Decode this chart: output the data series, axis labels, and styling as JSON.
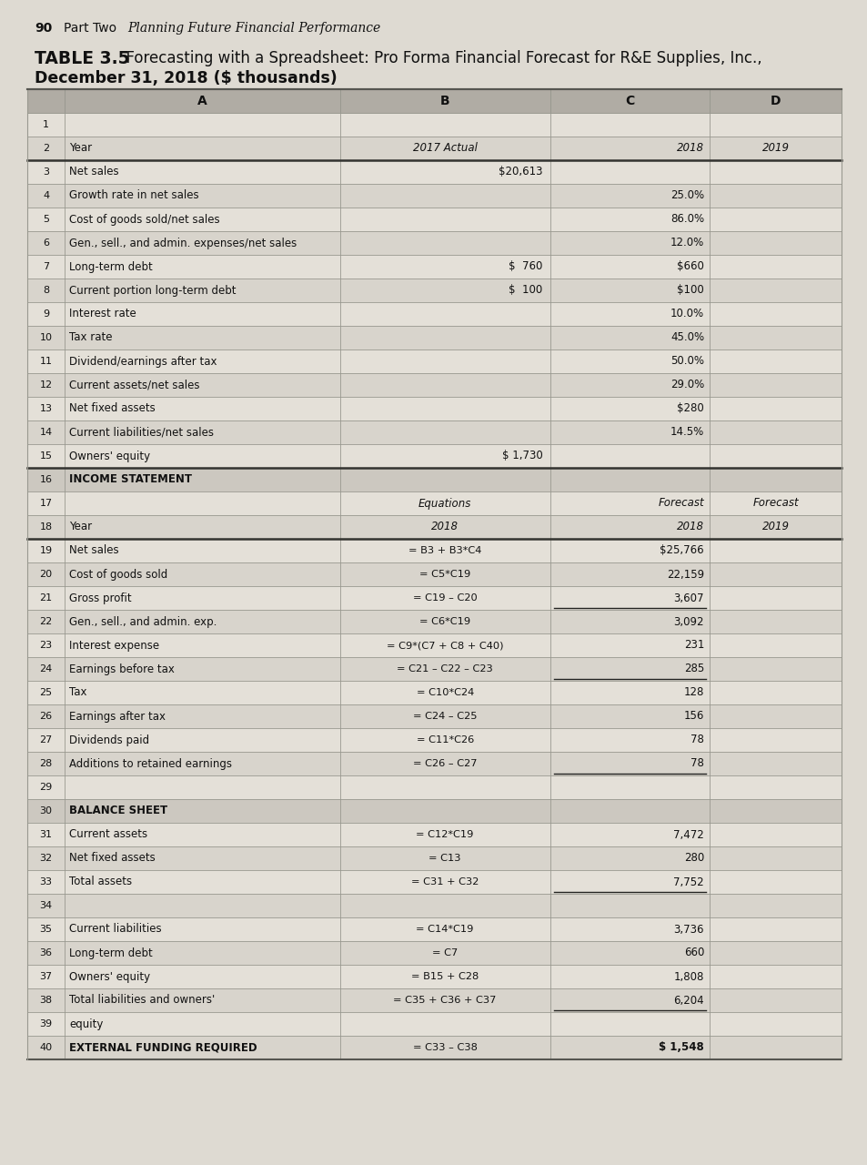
{
  "page_num": "90",
  "page_header_part": "Part Two",
  "page_header_italic": "Planning Future Financial Performance",
  "table_title_bold": "TABLE 3.5",
  "table_title_rest": "  Forecasting with a Spreadsheet: Pro Forma Financial Forecast for R&E Supplies, Inc.,",
  "table_subtitle": "December 31, 2018 ($ thousands)",
  "bg_color": "#dedad2",
  "table_bg": "#e8e4dc",
  "header_col_bg": "#b8b4ac",
  "rows": [
    {
      "num": "1",
      "A": "",
      "B": "",
      "C": "",
      "D": "",
      "bold_A": false,
      "section": false
    },
    {
      "num": "2",
      "A": "Year",
      "B": "2017 Actual",
      "C": "2018",
      "D": "2019",
      "bold_A": false,
      "italic_BCD": true,
      "section": false,
      "thick_bottom": true
    },
    {
      "num": "3",
      "A": "Net sales",
      "B": "$20,613",
      "C": "",
      "D": "",
      "bold_A": false,
      "section": false
    },
    {
      "num": "4",
      "A": "Growth rate in net sales",
      "B": "",
      "C": "25.0%",
      "D": "",
      "bold_A": false,
      "section": false
    },
    {
      "num": "5",
      "A": "Cost of goods sold/net sales",
      "B": "",
      "C": "86.0%",
      "D": "",
      "bold_A": false,
      "section": false
    },
    {
      "num": "6",
      "A": "Gen., sell., and admin. expenses/net sales",
      "B": "",
      "C": "12.0%",
      "D": "",
      "bold_A": false,
      "section": false
    },
    {
      "num": "7",
      "A": "Long-term debt",
      "B": "$  760",
      "C": "$660",
      "D": "",
      "bold_A": false,
      "section": false
    },
    {
      "num": "8",
      "A": "Current portion long-term debt",
      "B": "$  100",
      "C": "$100",
      "D": "",
      "bold_A": false,
      "section": false
    },
    {
      "num": "9",
      "A": "Interest rate",
      "B": "",
      "C": "10.0%",
      "D": "",
      "bold_A": false,
      "section": false
    },
    {
      "num": "10",
      "A": "Tax rate",
      "B": "",
      "C": "45.0%",
      "D": "",
      "bold_A": false,
      "section": false
    },
    {
      "num": "11",
      "A": "Dividend/earnings after tax",
      "B": "",
      "C": "50.0%",
      "D": "",
      "bold_A": false,
      "section": false
    },
    {
      "num": "12",
      "A": "Current assets/net sales",
      "B": "",
      "C": "29.0%",
      "D": "",
      "bold_A": false,
      "section": false
    },
    {
      "num": "13",
      "A": "Net fixed assets",
      "B": "",
      "C": "$280",
      "D": "",
      "bold_A": false,
      "section": false
    },
    {
      "num": "14",
      "A": "Current liabilities/net sales",
      "B": "",
      "C": "14.5%",
      "D": "",
      "bold_A": false,
      "section": false
    },
    {
      "num": "15",
      "A": "Owners' equity",
      "B": "$ 1,730",
      "C": "",
      "D": "",
      "bold_A": false,
      "section": false,
      "thick_bottom": true
    },
    {
      "num": "16",
      "A": "INCOME STATEMENT",
      "B": "",
      "C": "",
      "D": "",
      "bold_A": true,
      "section": true
    },
    {
      "num": "17",
      "A": "",
      "B": "Equations",
      "C": "Forecast",
      "D": "Forecast",
      "bold_A": false,
      "italic_BCD": true,
      "section": false,
      "top_label": true
    },
    {
      "num": "18",
      "A": "Year",
      "B": "2018",
      "C": "2018",
      "D": "2019",
      "bold_A": false,
      "italic_BCD": true,
      "section": false,
      "thick_bottom": true
    },
    {
      "num": "19",
      "A": "Net sales",
      "B": "= B3 + B3*C4",
      "C": "$25,766",
      "D": "",
      "bold_A": false,
      "section": false
    },
    {
      "num": "20",
      "A": "Cost of goods sold",
      "B": "= C5*C19",
      "C": "22,159",
      "D": "",
      "bold_A": false,
      "section": false
    },
    {
      "num": "21",
      "A": "Gross profit",
      "B": "= C19 – C20",
      "C": "3,607",
      "D": "",
      "bold_A": false,
      "section": false,
      "underline_C": true
    },
    {
      "num": "22",
      "A": "Gen., sell., and admin. exp.",
      "B": "= C6*C19",
      "C": "3,092",
      "D": "",
      "bold_A": false,
      "section": false
    },
    {
      "num": "23",
      "A": "Interest expense",
      "B": "= C9*(C7 + C8 + C40)",
      "C": "231",
      "D": "",
      "bold_A": false,
      "section": false
    },
    {
      "num": "24",
      "A": "Earnings before tax",
      "B": "= C21 – C22 – C23",
      "C": "285",
      "D": "",
      "bold_A": false,
      "section": false,
      "underline_C": true
    },
    {
      "num": "25",
      "A": "Tax",
      "B": "= C10*C24",
      "C": "128",
      "D": "",
      "bold_A": false,
      "section": false
    },
    {
      "num": "26",
      "A": "Earnings after tax",
      "B": "= C24 – C25",
      "C": "156",
      "D": "",
      "bold_A": false,
      "section": false
    },
    {
      "num": "27",
      "A": "Dividends paid",
      "B": "= C11*C26",
      "C": "78",
      "D": "",
      "bold_A": false,
      "section": false
    },
    {
      "num": "28",
      "A": "Additions to retained earnings",
      "B": "= C26 – C27",
      "C": "78",
      "D": "",
      "bold_A": false,
      "section": false,
      "underline_C": true
    },
    {
      "num": "29",
      "A": "",
      "B": "",
      "C": "",
      "D": "",
      "bold_A": false,
      "section": false
    },
    {
      "num": "30",
      "A": "BALANCE SHEET",
      "B": "",
      "C": "",
      "D": "",
      "bold_A": true,
      "section": true
    },
    {
      "num": "31",
      "A": "Current assets",
      "B": "= C12*C19",
      "C": "7,472",
      "D": "",
      "bold_A": false,
      "section": false
    },
    {
      "num": "32",
      "A": "Net fixed assets",
      "B": "= C13",
      "C": "280",
      "D": "",
      "bold_A": false,
      "section": false
    },
    {
      "num": "33",
      "A": "Total assets",
      "B": "= C31 + C32",
      "C": "7,752",
      "D": "",
      "bold_A": false,
      "section": false,
      "underline_C": true
    },
    {
      "num": "34",
      "A": "",
      "B": "",
      "C": "",
      "D": "",
      "bold_A": false,
      "section": false
    },
    {
      "num": "35",
      "A": "Current liabilities",
      "B": "= C14*C19",
      "C": "3,736",
      "D": "",
      "bold_A": false,
      "section": false
    },
    {
      "num": "36",
      "A": "Long-term debt",
      "B": "= C7",
      "C": "660",
      "D": "",
      "bold_A": false,
      "section": false
    },
    {
      "num": "37",
      "A": "Owners' equity",
      "B": "= B15 + C28",
      "C": "1,808",
      "D": "",
      "bold_A": false,
      "section": false
    },
    {
      "num": "38",
      "A": "Total liabilities and owners'",
      "B": "= C35 + C36 + C37",
      "C": "6,204",
      "D": "",
      "bold_A": false,
      "section": false,
      "underline_C": true
    },
    {
      "num": "39",
      "A": "equity",
      "B": "",
      "C": "",
      "D": "",
      "bold_A": false,
      "section": false
    },
    {
      "num": "40",
      "A": "EXTERNAL FUNDING REQUIRED",
      "B": "= C33 – C38",
      "C": "$ 1,548",
      "D": "",
      "bold_A": true,
      "section": false,
      "bold_C": true
    }
  ]
}
